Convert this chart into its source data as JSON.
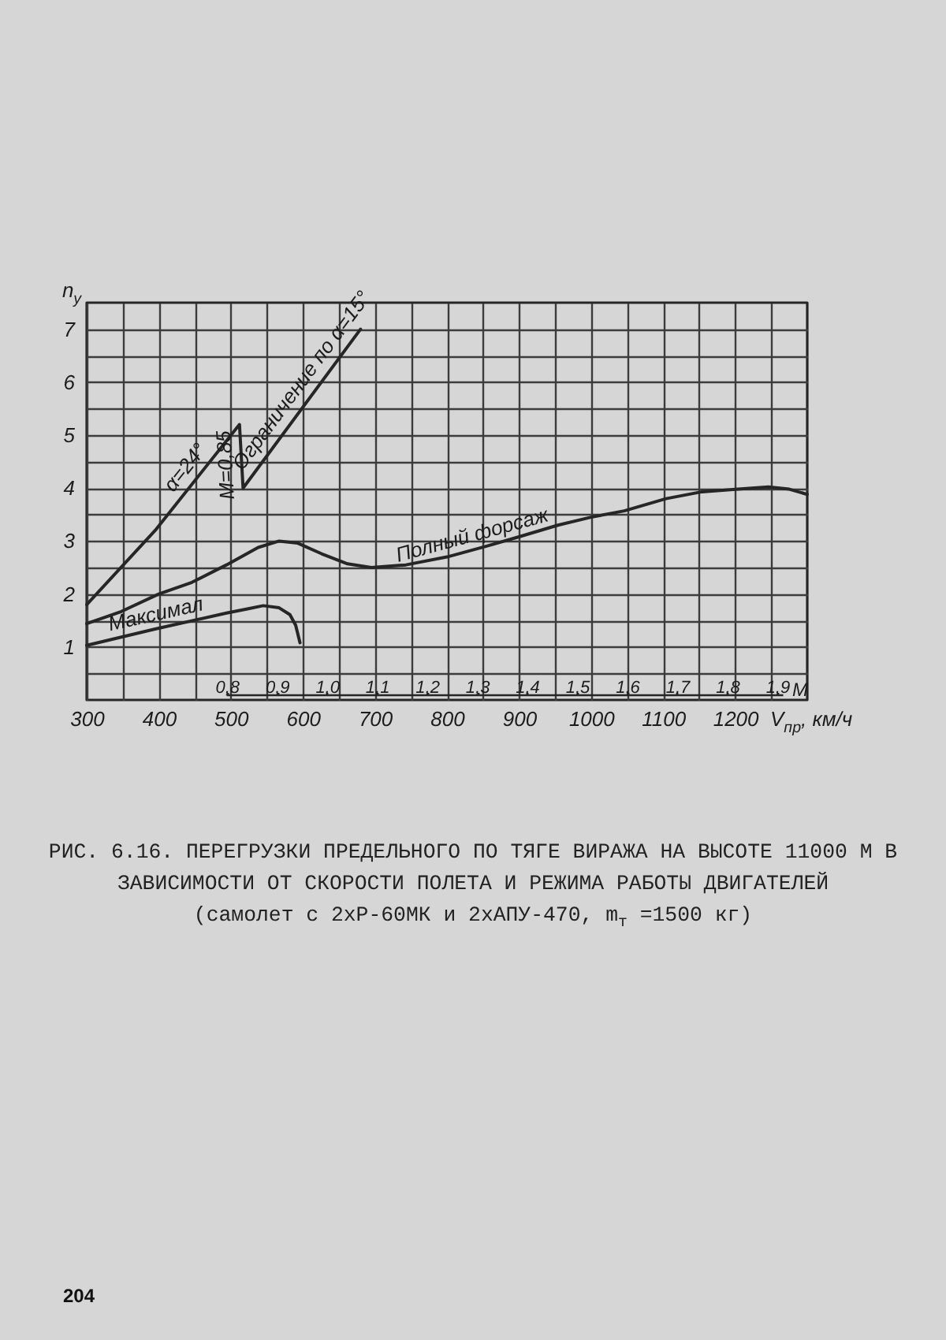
{
  "chart_data": {
    "type": "line",
    "title": "РИС. 6.16. ПЕРЕГРУЗКИ ПРЕДЕЛЬНОГО ПО ТЯГЕ ВИРАЖА НА ВЫСОТЕ 11000 М В ЗАВИСИМОСТИ ОТ СКОРОСТИ ПОЛЕТА И РЕЖИМА РАБОТЫ ДВИГАТЕЛЕЙ",
    "subtitle": "(самолет с 2хР-60МК и 2хАПУ-470, m$_{т}$ =1500 кг)",
    "xlabel": "V$_{пр}$, км/ч",
    "ylabel": "n$_{y}$",
    "x2label": "M",
    "series": [
      {
        "name": "Полный форсаж",
        "color": "#262626",
        "x": [
          300,
          348,
          400,
          446,
          494,
          538,
          567,
          593,
          626,
          662,
          695,
          743,
          800,
          854,
          900,
          954,
          1000,
          1046,
          1104,
          1154,
          1204,
          1246,
          1275,
          1300
        ],
        "values": [
          1.44,
          1.67,
          2.0,
          2.22,
          2.55,
          2.88,
          3.0,
          2.96,
          2.76,
          2.57,
          2.5,
          2.55,
          2.7,
          2.9,
          3.08,
          3.3,
          3.45,
          3.57,
          3.8,
          3.93,
          3.98,
          4.02,
          3.98,
          3.88
        ]
      },
      {
        "name": "Максимал",
        "color": "#262626",
        "x": [
          300,
          395,
          494,
          523,
          545,
          567,
          582,
          590,
          596
        ],
        "values": [
          1.03,
          1.34,
          1.64,
          1.72,
          1.78,
          1.74,
          1.61,
          1.41,
          1.08
        ]
      },
      {
        "color": "#262626",
        "x": [
          300,
          395,
          512,
          517,
          680
        ],
        "values": [
          1.8,
          3.2,
          5.2,
          4.0,
          7.0
        ]
      }
    ],
    "annotations": [
      {
        "text": "α=24°",
        "x": 454,
        "y": 4.2
      },
      {
        "text": "M=0,85",
        "x": 515,
        "y": 4.45
      },
      {
        "text": "Ограничение по α=15°",
        "x": 616,
        "y": 5.85
      },
      "204"
    ],
    "xlim": [
      300,
      1300
    ],
    "ylim": [
      0,
      7.5
    ],
    "xticks": [
      300,
      {
        "value": 350,
        "label": null
      },
      400,
      {
        "value": 450,
        "label": null
      },
      500,
      {
        "value": 550,
        "label": null
      },
      600,
      {
        "value": 650,
        "label": null
      },
      700,
      {
        "value": 750,
        "label": null
      },
      800,
      {
        "value": 850,
        "label": null
      },
      900,
      {
        "value": 950,
        "label": null
      },
      1000,
      {
        "value": 1050,
        "label": null
      },
      1100,
      {
        "value": 1150,
        "label": null
      },
      1200,
      {
        "value": 1250,
        "label": null
      }
    ],
    "yticks": [
      {
        "value": 0.5,
        "label": null
      },
      1,
      {
        "value": 1.5,
        "label": null
      },
      2,
      {
        "value": 2.5,
        "label": null
      },
      3,
      {
        "value": 3.5,
        "label": null
      },
      4,
      {
        "value": 4.5,
        "label": null
      },
      5,
      {
        "value": 5.5,
        "label": null
      },
      6,
      {
        "value": 6.5,
        "label": null
      },
      7
    ],
    "x2lim": [
      0.52,
      1.96
    ],
    "x2ticks": [
      {
        "value": 0.8,
        "label": "0,8"
      },
      {
        "value": 0.9,
        "label": "0,9"
      },
      {
        "value": 1.0,
        "label": "1,0"
      },
      {
        "value": 1.1,
        "label": "1,1"
      },
      {
        "value": 1.2,
        "label": "1,2"
      },
      {
        "value": 1.3,
        "label": "1,3"
      },
      {
        "value": 1.4,
        "label": "1,4"
      },
      {
        "value": 1.5,
        "label": "1,5"
      },
      {
        "value": 1.6,
        "label": "1,6"
      },
      {
        "value": 1.7,
        "label": "1,7"
      },
      {
        "value": 1.8,
        "label": "1,8"
      },
      {
        "value": 1.9,
        "label": "1,9"
      }
    ],
    "grid": true
  }
}
